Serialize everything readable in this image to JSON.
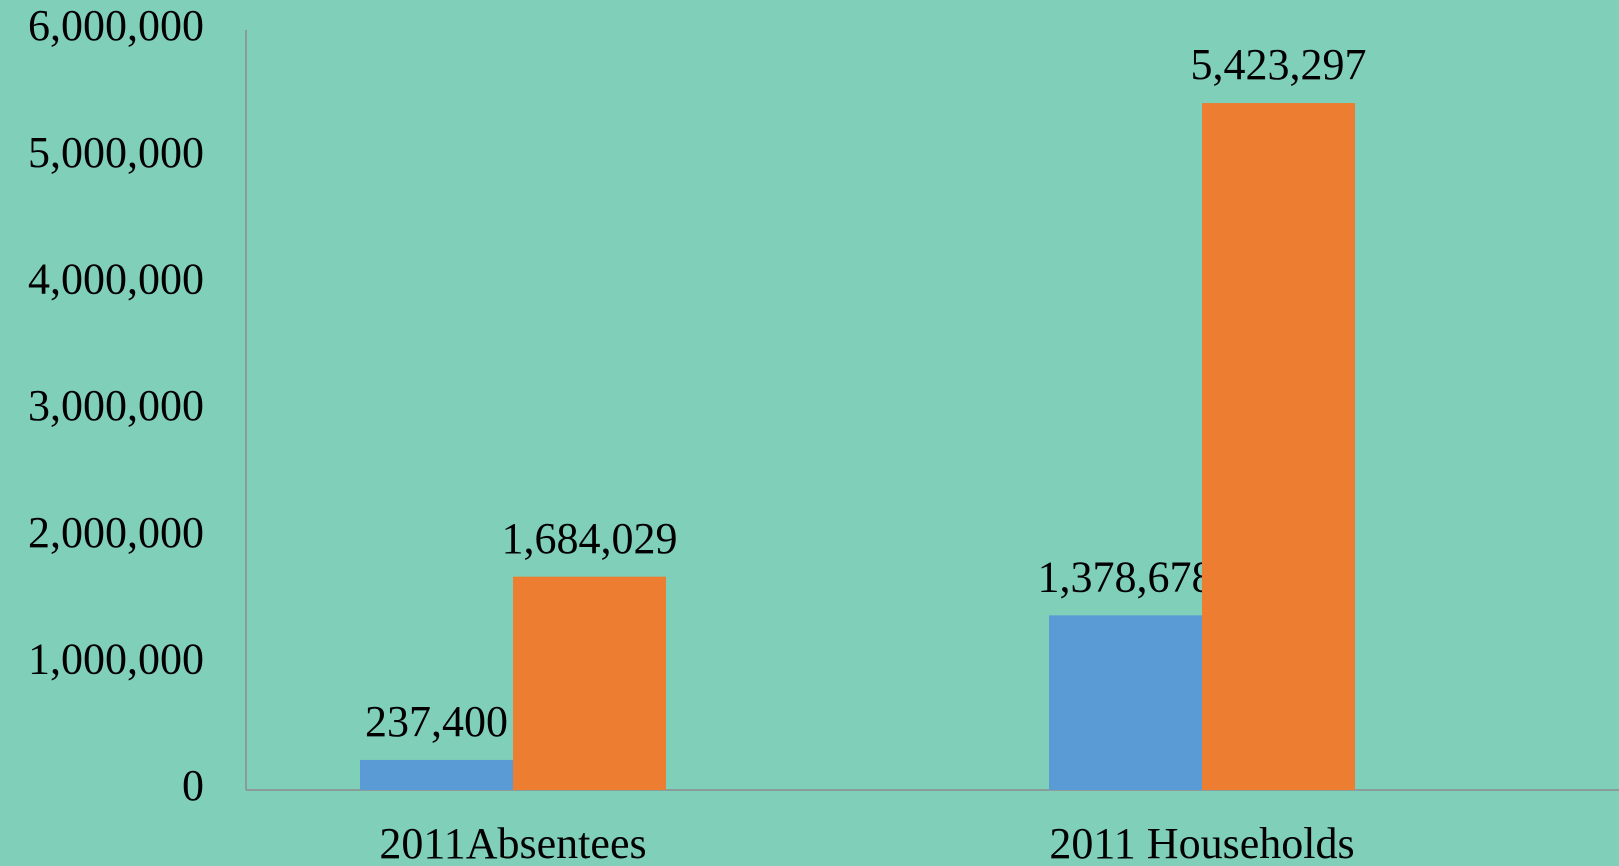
{
  "chart_data": {
    "type": "bar",
    "categories": [
      "2011Absentees",
      "2011 Households"
    ],
    "series": [
      {
        "color": "#5b9bd5",
        "values": [
          237400,
          1378678
        ],
        "value_labels": [
          "237,400",
          "1,378,678"
        ]
      },
      {
        "color": "#ed7d31",
        "values": [
          1684029,
          5423297
        ],
        "value_labels": [
          "1,684,029",
          "5,423,297"
        ]
      }
    ],
    "ylim": [
      0,
      6000000
    ],
    "yticks": [
      0,
      {
        "value": 1000000,
        "label": "1,000,000"
      },
      {
        "value": 2000000,
        "label": "2,000,000"
      },
      {
        "value": 3000000,
        "label": "3,000,000"
      },
      {
        "value": 4000000,
        "label": "4,000,000"
      },
      {
        "value": 5000000,
        "label": "5,000,000"
      },
      {
        "value": 6000000,
        "label": "6,000,000"
      }
    ],
    "grid": false
  }
}
